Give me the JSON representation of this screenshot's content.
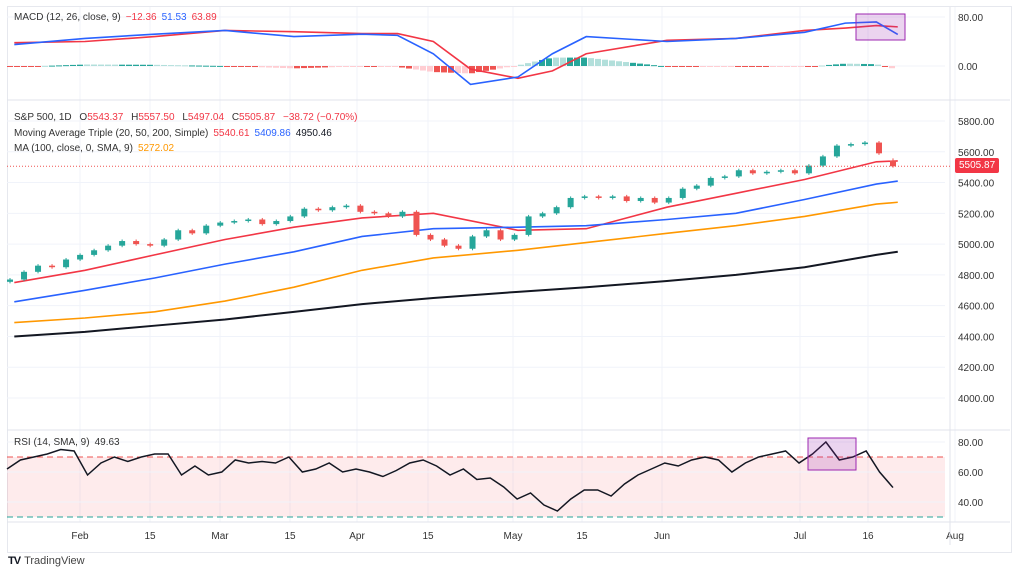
{
  "colors": {
    "up": "#26a69a",
    "down": "#ef5350",
    "ma20": "#f23645",
    "ma50": "#2962ff",
    "ma100": "#ff9800",
    "ma200": "#131722",
    "macd": "#2962ff",
    "signal": "#f23645",
    "rsi": "#131722",
    "highlight": "#9c27b0"
  },
  "macd_legend": {
    "label": "MACD (12, 26, close, 9)",
    "hist": "−12.36",
    "macd": "51.53",
    "signal": "63.89"
  },
  "main_legend": {
    "symbol": "S&P 500, 1D",
    "o_label": "O",
    "o": "5543.37",
    "h_label": "H",
    "h": "5557.50",
    "l_label": "L",
    "l": "5497.04",
    "c_label": "C",
    "c": "5505.87",
    "change": "−38.72 (−0.70%)"
  },
  "mat_legend": {
    "label": "Moving Average Triple (20, 50, 200, Simple)",
    "v20": "5540.61",
    "v50": "5409.86",
    "v200": "4950.46"
  },
  "ma_legend": {
    "label": "MA (100, close, 0, SMA, 9)",
    "v100": "5272.02"
  },
  "rsi_legend": {
    "label": "RSI (14, SMA, 9)",
    "value": "49.63"
  },
  "price_tag": "5505.87",
  "brand": "TradingView",
  "chart_data": [
    {
      "type": "candlestick",
      "title": "S&P 500, 1D",
      "ylim": [
        3800,
        5900
      ],
      "y_ticks": [
        "5800.00",
        "5600.00",
        "5400.00",
        "5200.00",
        "5000.00",
        "4800.00",
        "4600.00",
        "4400.00",
        "4200.00",
        "4000.00"
      ],
      "x_ticks": [
        "Feb",
        "15",
        "Mar",
        "15",
        "Apr",
        "15",
        "May",
        "15",
        "Jun",
        "Jul",
        "16",
        "Aug"
      ],
      "closes": [
        4770,
        4820,
        4860,
        4850,
        4900,
        4930,
        4960,
        4990,
        5020,
        5000,
        4990,
        5030,
        5090,
        5070,
        5120,
        5140,
        5150,
        5160,
        5130,
        5150,
        5180,
        5230,
        5220,
        5240,
        5250,
        5210,
        5200,
        5180,
        5210,
        5060,
        5030,
        4990,
        4970,
        5050,
        5090,
        5030,
        5060,
        5180,
        5200,
        5240,
        5300,
        5310,
        5300,
        5310,
        5280,
        5300,
        5270,
        5300,
        5360,
        5380,
        5430,
        5440,
        5480,
        5460,
        5470,
        5480,
        5460,
        5510,
        5570,
        5640,
        5650,
        5660,
        5590,
        5505.87
      ],
      "last_bar": {
        "open": 5543.37,
        "high": 5557.5,
        "low": 5497.04,
        "close": 5505.87
      },
      "moving_averages": [
        {
          "name": "MA20",
          "points": [
            [
              "Jan 22",
              4750
            ],
            [
              "Feb 1",
              4830
            ],
            [
              "Feb 15",
              4930
            ],
            [
              "Mar 1",
              5030
            ],
            [
              "Mar 15",
              5110
            ],
            [
              "Apr 1",
              5170
            ],
            [
              "Apr 15",
              5200
            ],
            [
              "May 1",
              5090
            ],
            [
              "May 15",
              5100
            ],
            [
              "Jun 3",
              5240
            ],
            [
              "Jun 17",
              5330
            ],
            [
              "Jul 1",
              5420
            ],
            [
              "Jul 16",
              5535
            ],
            [
              "Jul 19",
              5540.61
            ]
          ]
        },
        {
          "name": "MA50",
          "points": [
            [
              "Jan 22",
              4625
            ],
            [
              "Feb 1",
              4700
            ],
            [
              "Feb 15",
              4780
            ],
            [
              "Mar 1",
              4870
            ],
            [
              "Mar 15",
              4950
            ],
            [
              "Apr 1",
              5050
            ],
            [
              "Apr 15",
              5100
            ],
            [
              "May 1",
              5110
            ],
            [
              "May 15",
              5120
            ],
            [
              "Jun 3",
              5160
            ],
            [
              "Jun 17",
              5200
            ],
            [
              "Jul 1",
              5290
            ],
            [
              "Jul 16",
              5390
            ],
            [
              "Jul 19",
              5409.86
            ]
          ]
        },
        {
          "name": "MA100",
          "points": [
            [
              "Jan 22",
              4490
            ],
            [
              "Feb 1",
              4520
            ],
            [
              "Feb 15",
              4560
            ],
            [
              "Mar 1",
              4630
            ],
            [
              "Mar 15",
              4720
            ],
            [
              "Apr 1",
              4830
            ],
            [
              "Apr 15",
              4910
            ],
            [
              "May 1",
              4960
            ],
            [
              "May 15",
              5010
            ],
            [
              "Jun 3",
              5070
            ],
            [
              "Jun 17",
              5120
            ],
            [
              "Jul 1",
              5180
            ],
            [
              "Jul 16",
              5260
            ],
            [
              "Jul 19",
              5272.02
            ]
          ]
        },
        {
          "name": "MA200",
          "points": [
            [
              "Jan 22",
              4400
            ],
            [
              "Feb 1",
              4430
            ],
            [
              "Feb 15",
              4470
            ],
            [
              "Mar 1",
              4510
            ],
            [
              "Mar 15",
              4560
            ],
            [
              "Apr 1",
              4610
            ],
            [
              "Apr 15",
              4650
            ],
            [
              "May 1",
              4690
            ],
            [
              "May 15",
              4720
            ],
            [
              "Jun 3",
              4760
            ],
            [
              "Jun 17",
              4800
            ],
            [
              "Jul 1",
              4850
            ],
            [
              "Jul 16",
              4930
            ],
            [
              "Jul 19",
              4950.46
            ]
          ]
        }
      ]
    },
    {
      "type": "line",
      "title": "MACD (12, 26, close, 9)",
      "ylim": [
        -50,
        100
      ],
      "y_ticks": [
        "80.00",
        "0.00"
      ],
      "points": [
        [
          "Jan 22",
          35,
          38
        ],
        [
          "Feb 1",
          45,
          40
        ],
        [
          "Feb 15",
          52,
          48
        ],
        [
          "Mar 1",
          58,
          58
        ],
        [
          "Mar 15",
          48,
          56
        ],
        [
          "Apr 1",
          52,
          53
        ],
        [
          "Apr 8",
          50,
          53
        ],
        [
          "Apr 15",
          20,
          40
        ],
        [
          "Apr 22",
          -30,
          -5
        ],
        [
          "May 1",
          -18,
          -20
        ],
        [
          "May 8",
          20,
          -8
        ],
        [
          "May 15",
          48,
          20
        ],
        [
          "Jun 3",
          40,
          42
        ],
        [
          "Jun 17",
          45,
          45
        ],
        [
          "Jul 1",
          55,
          58
        ],
        [
          "Jul 10",
          70,
          62
        ],
        [
          "Jul 16",
          72,
          66
        ],
        [
          "Jul 19",
          51.53,
          63.89
        ]
      ]
    },
    {
      "type": "line",
      "title": "RSI (14, SMA, 9)",
      "ylim": [
        25,
        85
      ],
      "y_ticks": [
        "80.00",
        "60.00",
        "40.00"
      ],
      "bands": [
        70,
        30
      ],
      "values": [
        62,
        68,
        70,
        72,
        75,
        74,
        58,
        66,
        70,
        67,
        70,
        72,
        72,
        58,
        64,
        58,
        60,
        68,
        66,
        67,
        66,
        70,
        60,
        62,
        66,
        60,
        62,
        60,
        57,
        61,
        66,
        68,
        64,
        58,
        62,
        55,
        56,
        50,
        42,
        46,
        38,
        34,
        42,
        48,
        48,
        44,
        52,
        58,
        62,
        66,
        64,
        68,
        70,
        68,
        60,
        66,
        70,
        72,
        74,
        66,
        72,
        80,
        68,
        70,
        74,
        60,
        49.63
      ]
    }
  ]
}
